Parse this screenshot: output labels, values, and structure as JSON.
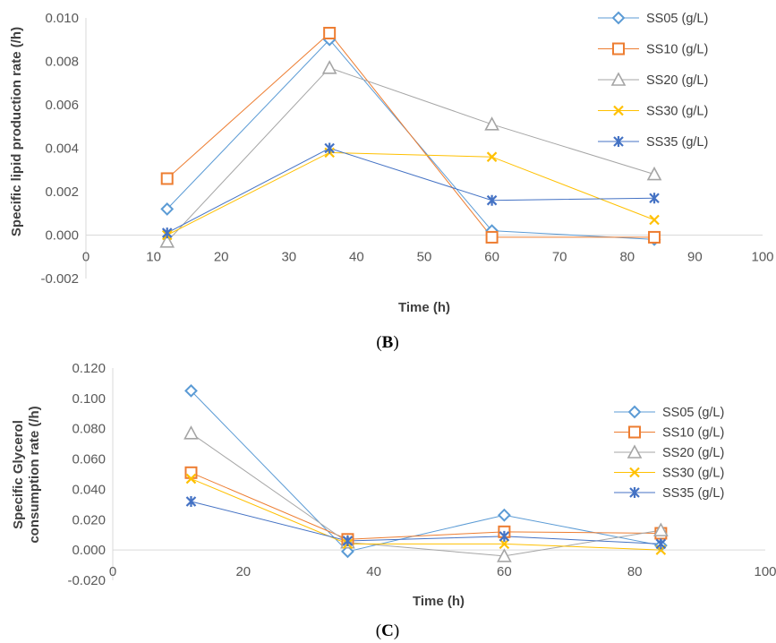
{
  "chart_data": [
    {
      "type": "line",
      "panel_label": "(B)",
      "panel_letter": "B",
      "ylabel": "Specific lipid production rate (/h)",
      "xlabel": "Time (h)",
      "xlim": [
        0,
        100
      ],
      "ylim": [
        -0.002,
        0.01
      ],
      "x_ticks": [
        "0",
        "10",
        "20",
        "30",
        "40",
        "50",
        "60",
        "70",
        "80",
        "90",
        "100"
      ],
      "y_ticks": [
        "-0.002",
        "0.000",
        "0.002",
        "0.004",
        "0.006",
        "0.008",
        "0.010"
      ],
      "x": [
        12,
        36,
        60,
        84
      ],
      "legend_position": "right",
      "series": [
        {
          "name": "SS05 (g/L)",
          "values": [
            0.0012,
            0.009,
            0.0002,
            -0.0002
          ]
        },
        {
          "name": "SS10 (g/L)",
          "values": [
            0.0026,
            0.0093,
            -0.0001,
            -0.0001
          ]
        },
        {
          "name": "SS20 (g/L)",
          "values": [
            -0.0003,
            0.0077,
            0.0051,
            0.0028
          ]
        },
        {
          "name": "SS30 (g/L)",
          "values": [
            0.0,
            0.0038,
            0.0036,
            0.0007
          ]
        },
        {
          "name": "SS35 (g/L)",
          "values": [
            0.0001,
            0.004,
            0.0016,
            0.0017
          ]
        }
      ]
    },
    {
      "type": "line",
      "panel_label": "(C)",
      "panel_letter": "C",
      "ylabel": "Specific Glycerol consumption rate (/h)",
      "ylabel_lines": [
        "Specific Glycerol",
        "consumption rate (/h)"
      ],
      "xlabel": "Time (h)",
      "xlim": [
        0,
        100
      ],
      "ylim": [
        -0.02,
        0.12
      ],
      "x_ticks": [
        "0",
        "20",
        "40",
        "60",
        "80",
        "100"
      ],
      "y_ticks": [
        "-0.020",
        "0.000",
        "0.020",
        "0.040",
        "0.060",
        "0.080",
        "0.100",
        "0.120"
      ],
      "x": [
        12,
        36,
        60,
        84
      ],
      "legend_position": "right",
      "series": [
        {
          "name": "SS05 (g/L)",
          "values": [
            0.105,
            -0.001,
            0.023,
            0.003
          ]
        },
        {
          "name": "SS10 (g/L)",
          "values": [
            0.051,
            0.007,
            0.012,
            0.011
          ]
        },
        {
          "name": "SS20 (g/L)",
          "values": [
            0.077,
            0.005,
            -0.004,
            0.013
          ]
        },
        {
          "name": "SS30 (g/L)",
          "values": [
            0.047,
            0.004,
            0.004,
            0.0
          ]
        },
        {
          "name": "SS35 (g/L)",
          "values": [
            0.032,
            0.006,
            0.009,
            0.004
          ]
        }
      ]
    }
  ],
  "colors": {
    "SS05": "#5b9bd5",
    "SS10": "#ed7d31",
    "SS20": "#a5a5a5",
    "SS30": "#ffc000",
    "SS35": "#4472c4",
    "axis": "#d9d9d9",
    "tick_text": "#595959"
  },
  "markers": [
    "diamond-icon",
    "square-icon",
    "triangle-icon",
    "x-icon",
    "asterisk-icon"
  ]
}
